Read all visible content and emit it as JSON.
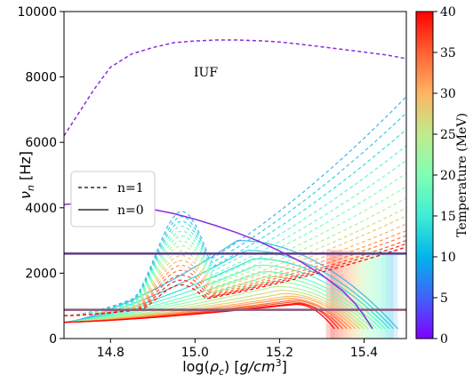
{
  "chart_data": {
    "type": "line",
    "xlabel_prefix": "log(",
    "xlabel_rho": "ρ",
    "xlabel_sub": "c",
    "xlabel_mid": ") [",
    "xlabel_unit": "g/cm",
    "xlabel_sup": "3",
    "xlabel_suffix": "]",
    "ylabel_nu": "ν",
    "ylabel_sub": "n",
    "ylabel_unit": " [Hz]",
    "xlim": [
      14.69,
      15.5
    ],
    "ylim": [
      0,
      10000
    ],
    "xticks": [
      14.8,
      15.0,
      15.2,
      15.4
    ],
    "xtick_labels": [
      "14.8",
      "15.0",
      "15.2",
      "15.4"
    ],
    "yticks": [
      0,
      2000,
      4000,
      6000,
      8000,
      10000
    ],
    "ytick_labels": [
      "0",
      "2000",
      "4000",
      "6000",
      "8000",
      "10000"
    ],
    "annotation": "IUF",
    "legend": {
      "placement": "center-left",
      "entries": [
        {
          "label": "n=1",
          "style": "dashed"
        },
        {
          "label": "n=0",
          "style": "solid"
        }
      ]
    },
    "colorbar": {
      "label": "Temperature (MeV)",
      "range": [
        0,
        40
      ],
      "ticks": [
        0,
        5,
        10,
        15,
        20,
        25,
        30,
        35,
        40
      ],
      "tick_labels": [
        "0",
        "5",
        "10",
        "15",
        "20",
        "25",
        "30",
        "35",
        "40"
      ],
      "colormap": "rainbow"
    },
    "horizontal_lines": [
      {
        "y": 2600,
        "color": "#5a3d8a"
      },
      {
        "y": 880,
        "color": "#8a5a7a"
      }
    ],
    "iuf_series": [
      {
        "name": "n=1",
        "style": "dashed",
        "color": "#8a2be2",
        "x": [
          14.69,
          14.72,
          14.76,
          14.8,
          14.85,
          14.9,
          14.95,
          15.0,
          15.05,
          15.1,
          15.15,
          15.2,
          15.25,
          15.3,
          15.35,
          15.4,
          15.45,
          15.5
        ],
        "y": [
          6200,
          6800,
          7600,
          8300,
          8700,
          8900,
          9050,
          9100,
          9130,
          9130,
          9110,
          9070,
          9000,
          8920,
          8840,
          8760,
          8680,
          8560
        ]
      },
      {
        "name": "n=0",
        "style": "solid",
        "color": "#8a2be2",
        "x": [
          14.69,
          14.72,
          14.76,
          14.8,
          14.85,
          14.9,
          14.95,
          15.0,
          15.05,
          15.1,
          15.15,
          15.2,
          15.25,
          15.3,
          15.35,
          15.38,
          15.4,
          15.42
        ],
        "y": [
          4100,
          4130,
          4150,
          4130,
          4050,
          3950,
          3820,
          3650,
          3450,
          3230,
          2980,
          2680,
          2350,
          1950,
          1450,
          1050,
          700,
          300
        ]
      }
    ],
    "temperature_family": {
      "temperatures": [
        10,
        12,
        14,
        16,
        18,
        20,
        22,
        24,
        26,
        28,
        30,
        32,
        34,
        36,
        38,
        40
      ],
      "n1_endpoint_y": [
        7400,
        6900,
        6400,
        5900,
        5450,
        5050,
        4650,
        4300,
        4000,
        3750,
        3500,
        3300,
        3150,
        3000,
        2900,
        2800
      ],
      "n1_bump_peak_y": [
        3500,
        3350,
        3200,
        3050,
        2900,
        2750,
        2600,
        2450,
        2300,
        2150,
        2000,
        1850,
        1700,
        1550,
        1400,
        1250
      ],
      "n0_peak_y": [
        3000,
        2700,
        2450,
        2250,
        2050,
        1900,
        1750,
        1600,
        1480,
        1380,
        1300,
        1230,
        1170,
        1120,
        1080,
        1050
      ],
      "n0_peak_x": [
        15.1,
        15.12,
        15.14,
        15.15,
        15.16,
        15.17,
        15.18,
        15.19,
        15.2,
        15.21,
        15.22,
        15.22,
        15.23,
        15.23,
        15.24,
        15.24
      ],
      "n0_end_x": [
        15.48,
        15.47,
        15.46,
        15.45,
        15.44,
        15.43,
        15.42,
        15.41,
        15.4,
        15.39,
        15.38,
        15.37,
        15.36,
        15.35,
        15.34,
        15.33
      ]
    }
  }
}
